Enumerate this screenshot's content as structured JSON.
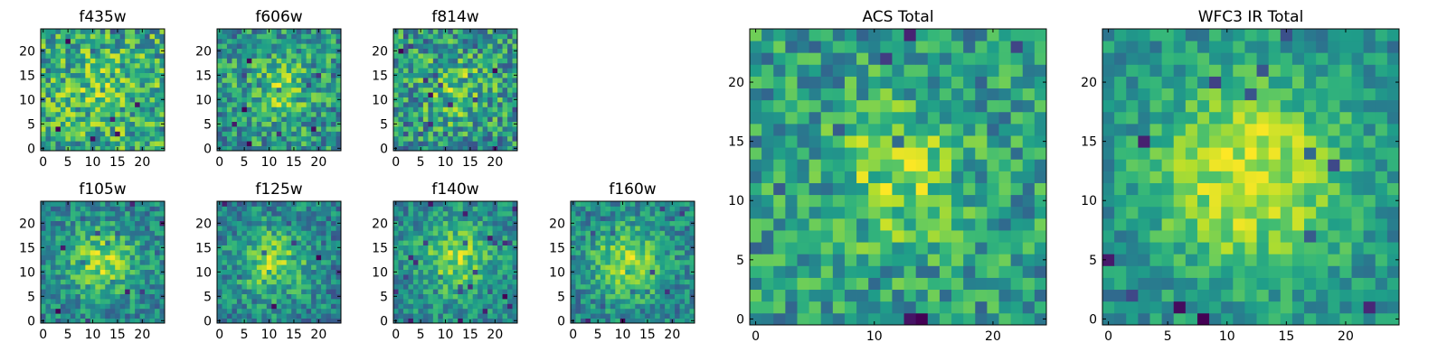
{
  "chart_data": [
    {
      "type": "heatmap",
      "title": "f435w",
      "xticks": [
        0,
        5,
        10,
        15,
        20
      ],
      "yticks": [
        0,
        5,
        10,
        15,
        20
      ],
      "xlim": [
        -0.5,
        24.5
      ],
      "ylim": [
        -0.5,
        24.5
      ],
      "grid_size": [
        25,
        25
      ],
      "noise": 0.45,
      "peak": 0.2,
      "sigma": 6,
      "center": [
        12,
        12
      ],
      "seed": 11
    },
    {
      "type": "heatmap",
      "title": "f606w",
      "xticks": [
        0,
        5,
        10,
        15,
        20
      ],
      "yticks": [
        0,
        5,
        10,
        15,
        20
      ],
      "xlim": [
        -0.5,
        24.5
      ],
      "ylim": [
        -0.5,
        24.5
      ],
      "grid_size": [
        25,
        25
      ],
      "noise": 0.4,
      "peak": 0.35,
      "sigma": 5,
      "center": [
        12,
        12
      ],
      "seed": 23
    },
    {
      "type": "heatmap",
      "title": "f814w",
      "xticks": [
        0,
        5,
        10,
        15,
        20
      ],
      "yticks": [
        0,
        5,
        10,
        15,
        20
      ],
      "xlim": [
        -0.5,
        24.5
      ],
      "ylim": [
        -0.5,
        24.5
      ],
      "grid_size": [
        25,
        25
      ],
      "noise": 0.45,
      "peak": 0.3,
      "sigma": 5,
      "center": [
        12,
        12
      ],
      "seed": 37
    },
    {
      "type": "heatmap",
      "title": "f105w",
      "xticks": [
        0,
        5,
        10,
        15,
        20
      ],
      "yticks": [
        0,
        5,
        10,
        15,
        20
      ],
      "xlim": [
        -0.5,
        24.5
      ],
      "ylim": [
        -0.5,
        24.5
      ],
      "grid_size": [
        25,
        25
      ],
      "noise": 0.3,
      "peak": 0.55,
      "sigma": 5,
      "center": [
        12,
        12
      ],
      "seed": 41
    },
    {
      "type": "heatmap",
      "title": "f125w",
      "xticks": [
        0,
        5,
        10,
        15,
        20
      ],
      "yticks": [
        0,
        5,
        10,
        15,
        20
      ],
      "xlim": [
        -0.5,
        24.5
      ],
      "ylim": [
        -0.5,
        24.5
      ],
      "grid_size": [
        25,
        25
      ],
      "noise": 0.32,
      "peak": 0.55,
      "sigma": 5,
      "center": [
        11,
        12
      ],
      "seed": 53
    },
    {
      "type": "heatmap",
      "title": "f140w",
      "xticks": [
        0,
        5,
        10,
        15,
        20
      ],
      "yticks": [
        0,
        5,
        10,
        15,
        20
      ],
      "xlim": [
        -0.5,
        24.5
      ],
      "ylim": [
        -0.5,
        24.5
      ],
      "grid_size": [
        25,
        25
      ],
      "noise": 0.32,
      "peak": 0.55,
      "sigma": 5,
      "center": [
        12,
        13
      ],
      "seed": 67
    },
    {
      "type": "heatmap",
      "title": "f160w",
      "xticks": [
        0,
        5,
        10,
        15,
        20
      ],
      "yticks": [
        0,
        5,
        10,
        15,
        20
      ],
      "xlim": [
        -0.5,
        24.5
      ],
      "ylim": [
        -0.5,
        24.5
      ],
      "grid_size": [
        25,
        25
      ],
      "noise": 0.3,
      "peak": 0.6,
      "sigma": 5,
      "center": [
        11,
        12
      ],
      "seed": 79
    },
    {
      "type": "heatmap",
      "title": "ACS Total",
      "xticks": [
        0,
        10,
        20
      ],
      "yticks": [
        0,
        5,
        10,
        15,
        20
      ],
      "xlim": [
        -0.5,
        24.5
      ],
      "ylim": [
        -0.5,
        24.5
      ],
      "grid_size": [
        25,
        25
      ],
      "noise": 0.38,
      "peak": 0.45,
      "sigma": 4,
      "center": [
        12,
        12
      ],
      "seed": 97
    },
    {
      "type": "heatmap",
      "title": "WFC3 IR Total",
      "xticks": [
        0,
        5,
        10,
        15,
        20
      ],
      "yticks": [
        0,
        5,
        10,
        15,
        20
      ],
      "xlim": [
        -0.5,
        24.5
      ],
      "ylim": [
        -0.5,
        24.5
      ],
      "grid_size": [
        25,
        25
      ],
      "noise": 0.22,
      "peak": 0.6,
      "sigma": 6,
      "center": [
        12,
        12
      ],
      "seed": 113
    }
  ]
}
